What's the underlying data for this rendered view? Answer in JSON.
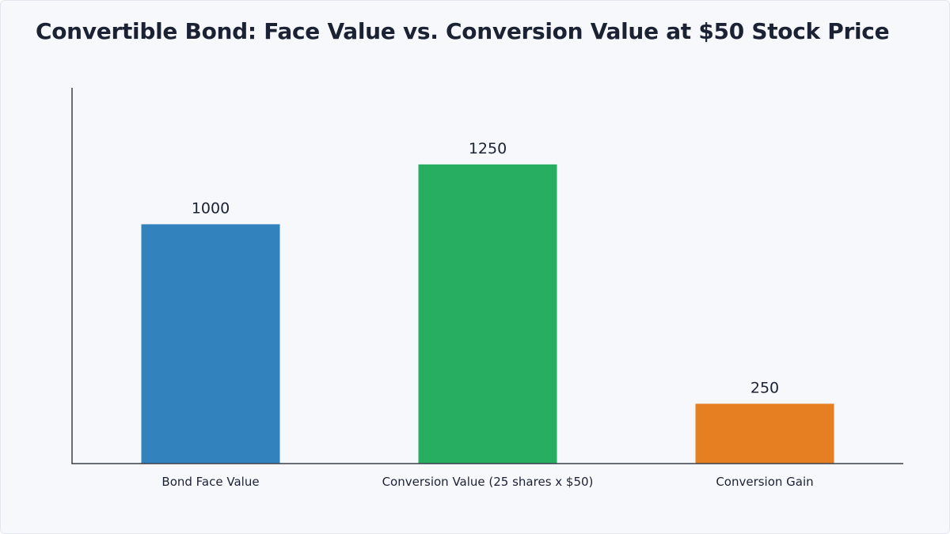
{
  "chart_data": {
    "type": "bar",
    "title": "Convertible Bond: Face Value vs. Conversion Value at $50 Stock Price",
    "categories": [
      "Bond Face Value",
      "Conversion Value (25 shares x $50)",
      "Conversion Gain"
    ],
    "values": [
      1000,
      1250,
      250
    ],
    "value_labels": [
      "1000",
      "1250",
      "250"
    ],
    "colors": [
      "#3182bd",
      "#27ae60",
      "#e67e22"
    ],
    "xlabel": "",
    "ylabel": "",
    "ylim": [
      0,
      1570
    ],
    "grid": false,
    "legend": "none"
  }
}
